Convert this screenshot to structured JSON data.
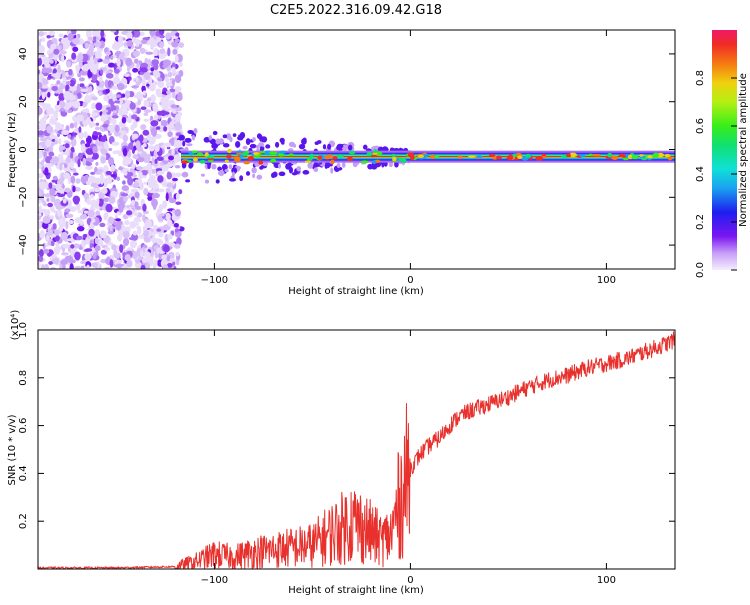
{
  "title": "C2E5.2022.316.09.42.G18",
  "colors": {
    "snr_line": "#e8302c",
    "cloud": "#7a1cf0",
    "band_core": "#cc1f1f"
  },
  "chart_data": [
    {
      "type": "heatmap",
      "xlabel": "Height of straight line (km)",
      "ylabel": "Frequency (Hz)",
      "xlim": [
        -190,
        135
      ],
      "ylim": [
        -50,
        50
      ],
      "xticks": [
        -100,
        0,
        100
      ],
      "yticks": [
        -40,
        -20,
        0,
        20,
        40
      ],
      "colorbar": {
        "label": "Normalized spectral amplitude",
        "range": [
          0,
          1
        ],
        "ticks": [
          "0.0",
          "0.2",
          "0.4",
          "0.6",
          "0.8"
        ],
        "tick_values": [
          0,
          0.2,
          0.4,
          0.6,
          0.8
        ]
      },
      "features": {
        "noise_region_x": [
          -190,
          -117
        ],
        "band_center_hz": -3,
        "band_start_x": -117
      }
    },
    {
      "type": "line",
      "xlabel": "Height of straight line (km)",
      "ylabel": "SNR (10 * v/v)",
      "scale_label": "(x10⁴)",
      "xlim": [
        -190,
        135
      ],
      "ylim": [
        0,
        1.0
      ],
      "xticks": [
        -100,
        0,
        100
      ],
      "yticks": [
        0.2,
        0.4,
        0.6,
        0.8,
        1.0
      ],
      "ytick_labels": [
        "0.2",
        "0.4",
        "0.6",
        "0.8",
        "1.0"
      ],
      "series": [
        {
          "x": [
            -190,
            -150,
            -120,
            -110,
            -100,
            -90,
            -80,
            -70,
            -60,
            -50,
            -40,
            -35,
            -30,
            -25,
            -20,
            -15,
            -10,
            -5,
            0,
            5,
            10,
            15,
            20,
            25,
            30,
            40,
            50,
            60,
            70,
            80,
            90,
            100,
            110,
            120,
            130,
            135
          ],
          "values": [
            0.005,
            0.005,
            0.01,
            0.03,
            0.06,
            0.05,
            0.07,
            0.08,
            0.09,
            0.1,
            0.15,
            0.17,
            0.2,
            0.18,
            0.15,
            0.12,
            0.14,
            0.3,
            0.42,
            0.48,
            0.52,
            0.55,
            0.6,
            0.64,
            0.66,
            0.69,
            0.72,
            0.76,
            0.79,
            0.81,
            0.84,
            0.86,
            0.88,
            0.91,
            0.94,
            0.96
          ]
        }
      ]
    }
  ]
}
